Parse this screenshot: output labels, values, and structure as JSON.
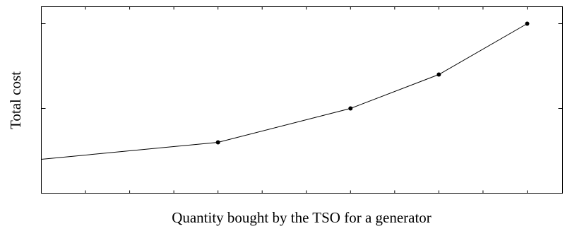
{
  "chart_data": {
    "type": "line",
    "title": "",
    "xlabel": "Quantity bought by the TSO for a generator",
    "ylabel": "Total cost",
    "x": [
      0,
      4,
      7,
      9,
      11
    ],
    "series": [
      {
        "values": [
          0.4,
          0.6,
          1.0,
          1.4,
          2.0
        ],
        "markers": [
          false,
          true,
          true,
          true,
          true
        ]
      }
    ],
    "xlim": [
      0,
      11.8
    ],
    "ylim": [
      0,
      2.2
    ],
    "x_ticks_minor": [
      1,
      2,
      3,
      4,
      5,
      6,
      7,
      8,
      9,
      10,
      11
    ],
    "y_ticks_major": [
      1,
      2
    ],
    "x_tick_labels": [],
    "y_tick_labels": [],
    "grid": false,
    "legend": "none",
    "colors": {
      "line": "#000000",
      "axis": "#000000",
      "background": "#ffffff"
    }
  }
}
